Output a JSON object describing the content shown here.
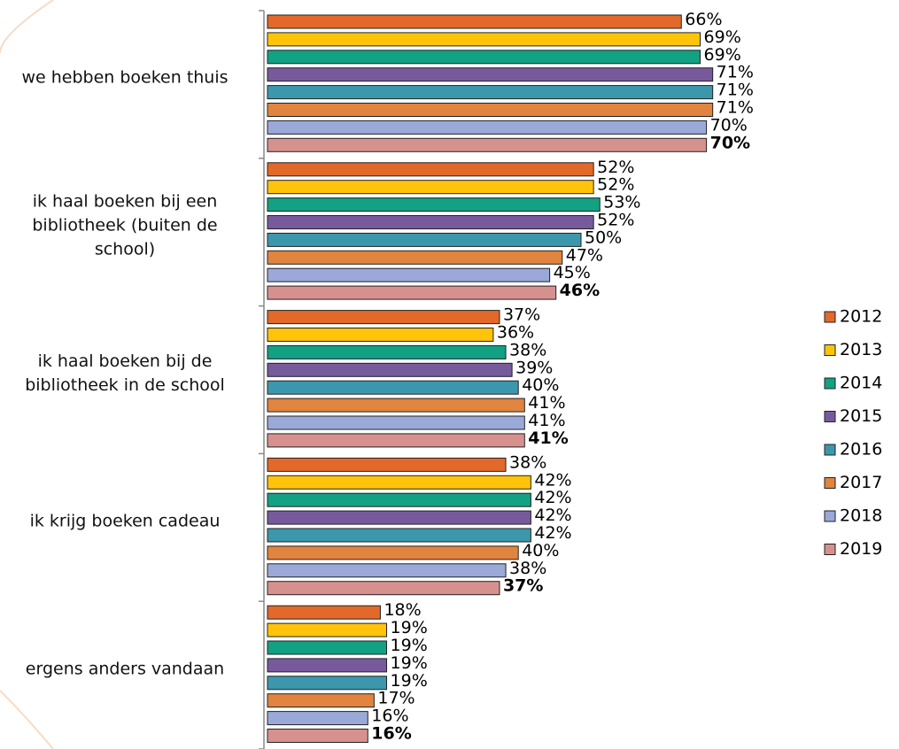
{
  "chart_data": {
    "type": "hbar",
    "categories": [
      "we hebben boeken thuis",
      "ik haal boeken bij een bibliotheek (buiten de school)",
      "ik haal boeken bij de bibliotheek in de school",
      "ik krijg boeken cadeau",
      "ergens anders vandaan"
    ],
    "series": [
      {
        "name": "2012",
        "color": "#e2692a",
        "values": [
          66,
          52,
          37,
          38,
          18
        ],
        "value_labels": [
          "66%",
          "52%",
          "37%",
          "38%",
          "18%"
        ]
      },
      {
        "name": "2013",
        "color": "#ffc40a",
        "values": [
          69,
          52,
          36,
          42,
          19
        ],
        "value_labels": [
          "69%",
          "52%",
          "36%",
          "42%",
          "19%"
        ]
      },
      {
        "name": "2014",
        "color": "#12a183",
        "values": [
          69,
          53,
          38,
          42,
          19
        ],
        "value_labels": [
          "69%",
          "53%",
          "38%",
          "42%",
          "19%"
        ]
      },
      {
        "name": "2015",
        "color": "#775a9c",
        "values": [
          71,
          52,
          39,
          42,
          19
        ],
        "value_labels": [
          "71%",
          "52%",
          "39%",
          "42%",
          "19%"
        ]
      },
      {
        "name": "2016",
        "color": "#3c97ad",
        "values": [
          71,
          50,
          40,
          42,
          19
        ],
        "value_labels": [
          "71%",
          "50%",
          "40%",
          "42%",
          "19%"
        ]
      },
      {
        "name": "2017",
        "color": "#e0843f",
        "values": [
          71,
          47,
          41,
          40,
          17
        ],
        "value_labels": [
          "71%",
          "47%",
          "41%",
          "40%",
          "17%"
        ]
      },
      {
        "name": "2018",
        "color": "#9aa9d8",
        "values": [
          70,
          45,
          41,
          38,
          16
        ],
        "value_labels": [
          "70%",
          "45%",
          "41%",
          "38%",
          "16%"
        ]
      },
      {
        "name": "2019",
        "color": "#d6918f",
        "values": [
          70,
          46,
          41,
          37,
          16
        ],
        "value_labels": [
          "70%",
          "46%",
          "41%",
          "37%",
          "16%"
        ]
      }
    ]
  }
}
